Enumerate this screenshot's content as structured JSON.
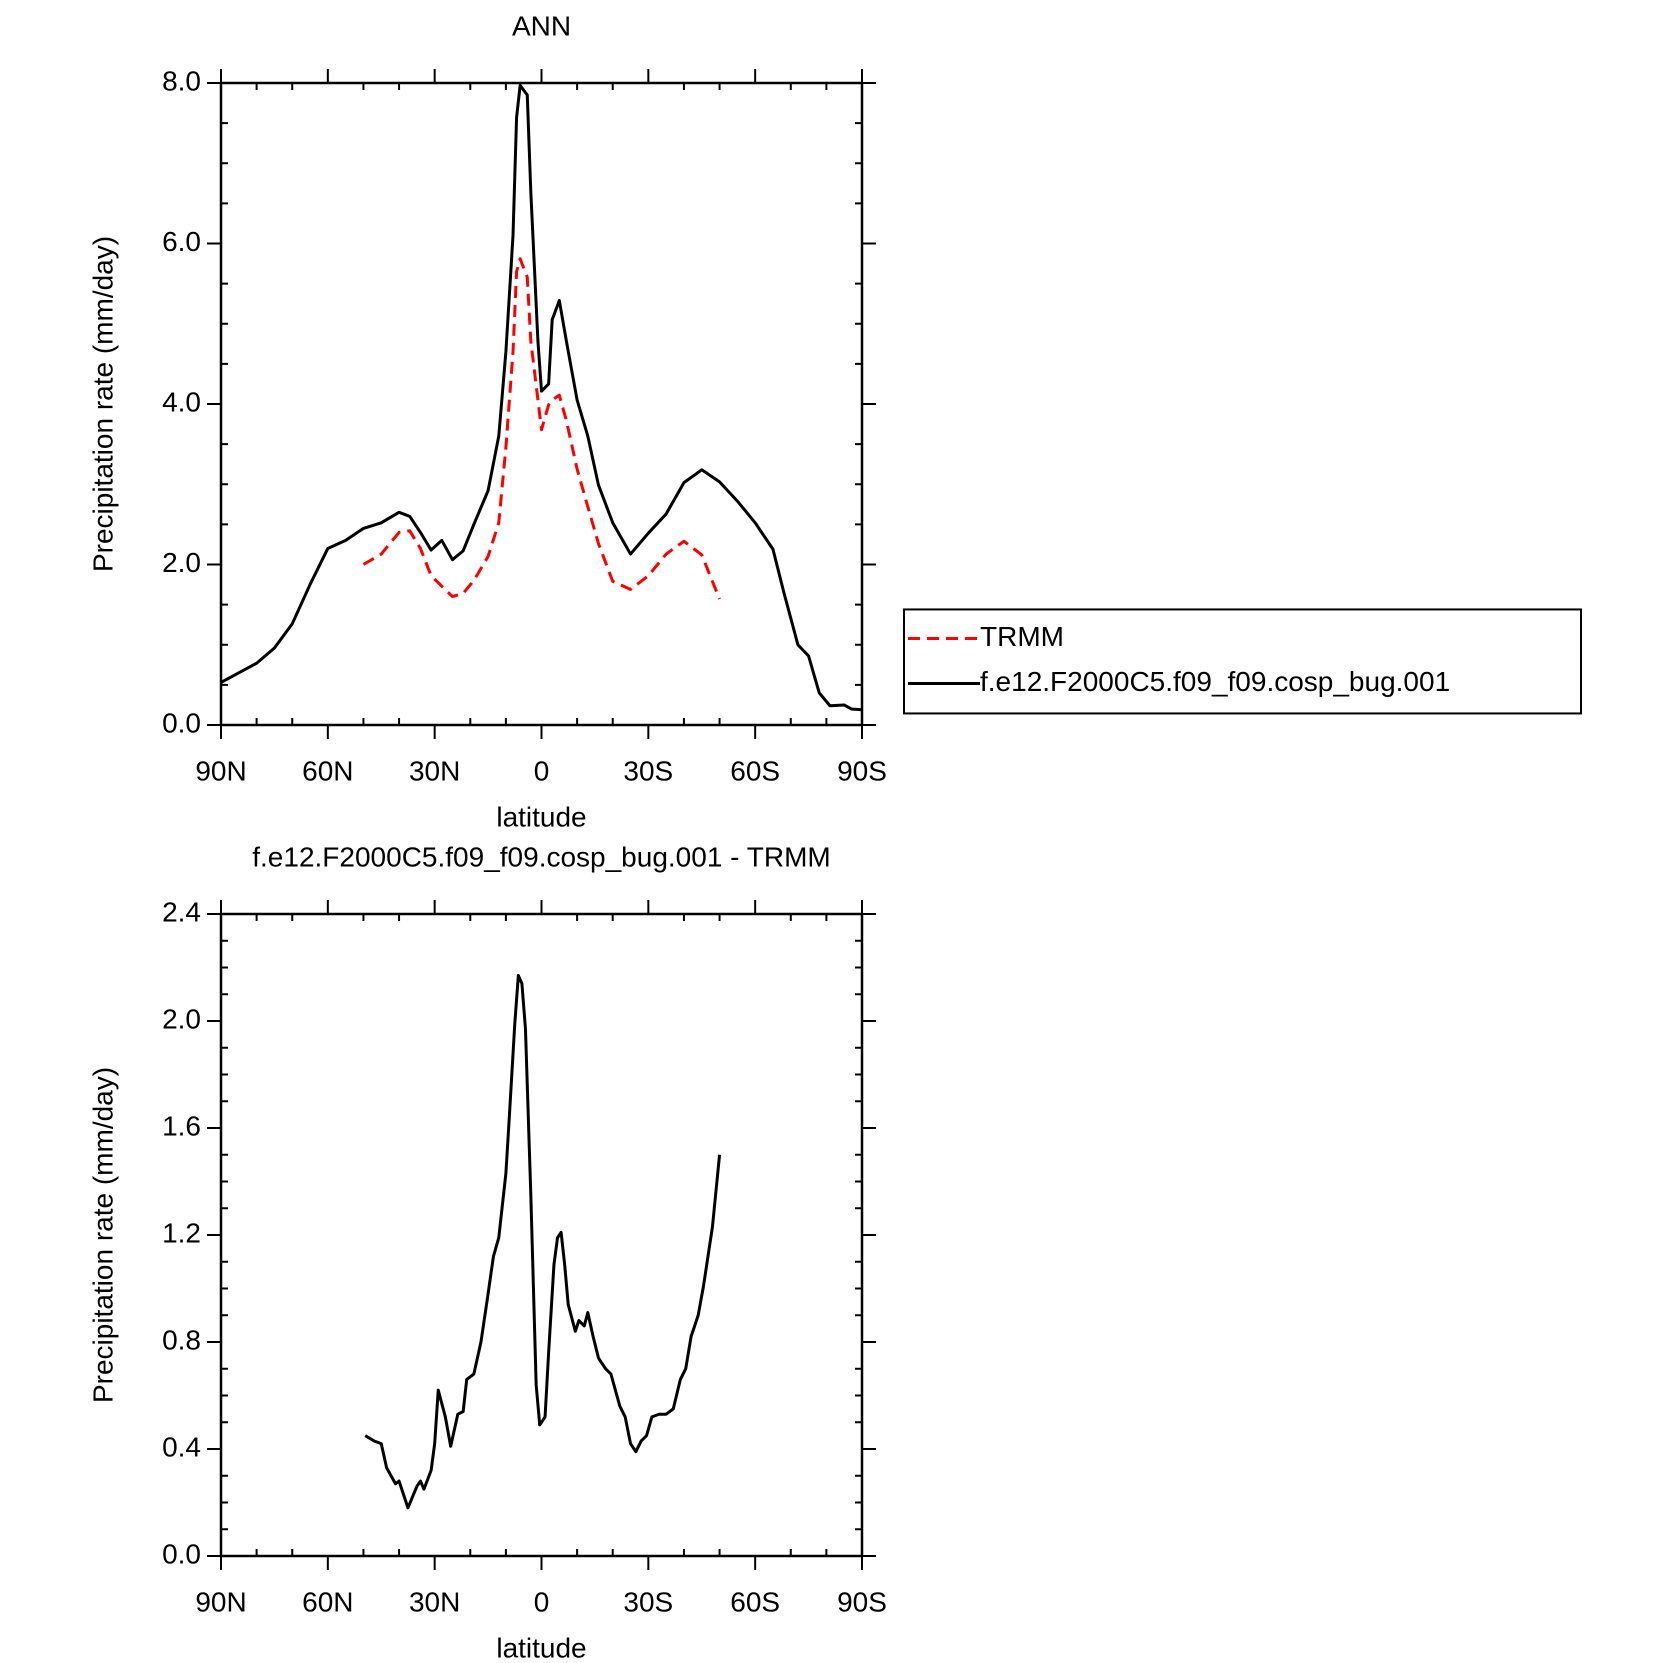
{
  "chart_data": [
    {
      "type": "line",
      "title": "ANN",
      "xlabel": "latitude",
      "ylabel": "Precipitation rate (mm/day)",
      "x": [
        90,
        85,
        80,
        75,
        70,
        65,
        60,
        55,
        50,
        45,
        40,
        37,
        34,
        31,
        28,
        25,
        22,
        19,
        15,
        12,
        10,
        8,
        7,
        6,
        4,
        3,
        1,
        0,
        -2,
        -3,
        -5,
        -7,
        -10,
        -13,
        -16,
        -20,
        -25,
        -30,
        -35,
        -40,
        -45,
        -50,
        -55,
        -60,
        -65,
        -68,
        -72,
        -75,
        -78,
        -81,
        -85,
        -87,
        -90
      ],
      "series": [
        {
          "name": "TRMM",
          "color": "#ff0000",
          "dash": true,
          "values": [
            null,
            null,
            null,
            null,
            null,
            null,
            null,
            null,
            2.0,
            2.13,
            2.4,
            2.42,
            2.2,
            1.86,
            1.73,
            1.6,
            1.64,
            1.8,
            2.1,
            2.52,
            3.46,
            4.65,
            5.65,
            5.81,
            5.58,
            4.78,
            4.05,
            3.68,
            3.99,
            4.05,
            4.11,
            3.79,
            3.19,
            2.72,
            2.26,
            1.79,
            1.69,
            1.86,
            2.13,
            2.29,
            2.12,
            1.57,
            null,
            null,
            null,
            null,
            null,
            null,
            null,
            null,
            null,
            null,
            null
          ]
        },
        {
          "name": "f.e12.F2000C5.f09_f09.cosp_bug.001",
          "color": "#000000",
          "dash": false,
          "values": [
            0.53,
            0.65,
            0.77,
            0.96,
            1.26,
            1.75,
            2.2,
            2.3,
            2.45,
            2.52,
            2.65,
            2.6,
            2.4,
            2.18,
            2.3,
            2.06,
            2.17,
            2.5,
            2.92,
            3.6,
            4.65,
            6.1,
            7.57,
            7.97,
            7.85,
            6.64,
            4.78,
            4.16,
            4.25,
            5.05,
            5.29,
            4.78,
            4.05,
            3.6,
            2.99,
            2.52,
            2.13,
            2.39,
            2.63,
            3.02,
            3.18,
            3.03,
            2.79,
            2.52,
            2.19,
            1.66,
            1.0,
            0.86,
            0.4,
            0.24,
            0.25,
            0.2,
            0.19
          ]
        }
      ],
      "legend": "right",
      "xlim": [
        90,
        -90
      ],
      "xticks": [
        {
          "value": 90,
          "label": "90N"
        },
        {
          "value": 60,
          "label": "60N"
        },
        {
          "value": 30,
          "label": "30N"
        },
        0,
        {
          "value": -30,
          "label": "30S"
        },
        {
          "value": -60,
          "label": "60S"
        },
        {
          "value": -90,
          "label": "90S"
        }
      ],
      "xminorticks": [
        80,
        70,
        50,
        40,
        20,
        10,
        -10,
        -20,
        -40,
        -50,
        -70,
        -80
      ],
      "ylim": [
        0,
        8
      ],
      "yticks": [
        {
          "value": 0,
          "label": "0.0"
        },
        {
          "value": 2,
          "label": "2.0"
        },
        {
          "value": 4,
          "label": "4.0"
        },
        {
          "value": 6,
          "label": "6.0"
        },
        {
          "value": 8,
          "label": "8.0"
        }
      ],
      "yminorticks": [
        0.5,
        1,
        1.5,
        2.5,
        3,
        3.5,
        4.5,
        5,
        5.5,
        6.5,
        7,
        7.5
      ]
    },
    {
      "type": "line",
      "title": "f.e12.F2000C5.f09_f09.cosp_bug.001 - TRMM",
      "xlabel": "latitude",
      "ylabel": "Precipitation rate (mm/day)",
      "x": [
        49.5,
        47,
        45,
        43.5,
        41,
        40,
        37.5,
        35,
        34,
        33,
        31,
        30,
        29,
        27,
        25.5,
        23.5,
        22,
        21,
        19,
        17,
        15,
        13.5,
        12,
        10,
        9,
        7.5,
        6.5,
        5.5,
        4.5,
        3,
        1.5,
        0.5,
        -1,
        -2,
        -3.5,
        -4.5,
        -5.5,
        -6.5,
        -7.5,
        -9.5,
        -10.5,
        -12,
        -13,
        -14.5,
        -16,
        -18,
        -19.5,
        -22,
        -23.5,
        -25,
        -26.5,
        -28,
        -29.5,
        -31,
        -33,
        -35,
        -37,
        -39,
        -40.5,
        -42,
        -44,
        -45.5,
        -48,
        -50
      ],
      "series": [
        {
          "color": "#000000",
          "dash": false,
          "values": [
            0.45,
            0.43,
            0.42,
            0.33,
            0.27,
            0.28,
            0.18,
            0.26,
            0.28,
            0.25,
            0.32,
            0.42,
            0.62,
            0.52,
            0.41,
            0.53,
            0.54,
            0.66,
            0.68,
            0.8,
            0.98,
            1.12,
            1.19,
            1.43,
            1.65,
            1.99,
            2.17,
            2.14,
            1.97,
            1.35,
            0.64,
            0.49,
            0.52,
            0.76,
            1.09,
            1.19,
            1.21,
            1.09,
            0.94,
            0.84,
            0.88,
            0.86,
            0.91,
            0.82,
            0.74,
            0.7,
            0.68,
            0.56,
            0.52,
            0.42,
            0.39,
            0.43,
            0.45,
            0.52,
            0.53,
            0.53,
            0.55,
            0.66,
            0.7,
            0.82,
            0.9,
            1.01,
            1.23,
            1.5
          ]
        }
      ],
      "xlim": [
        90,
        -90
      ],
      "xticks": [
        {
          "value": 90,
          "label": "90N"
        },
        {
          "value": 60,
          "label": "60N"
        },
        {
          "value": 30,
          "label": "30N"
        },
        0,
        {
          "value": -30,
          "label": "30S"
        },
        {
          "value": -60,
          "label": "60S"
        },
        {
          "value": -90,
          "label": "90S"
        }
      ],
      "xminorticks": [
        80,
        70,
        50,
        40,
        20,
        10,
        -10,
        -20,
        -40,
        -50,
        -70,
        -80
      ],
      "ylim": [
        0,
        2.4
      ],
      "yticks": [
        {
          "value": 0,
          "label": "0.0"
        },
        {
          "value": 0.4,
          "label": "0.4"
        },
        {
          "value": 0.8,
          "label": "0.8"
        },
        {
          "value": 1.2,
          "label": "1.2"
        },
        {
          "value": 1.6,
          "label": "1.6"
        },
        {
          "value": 2.0,
          "label": "2.0"
        },
        {
          "value": 2.4,
          "label": "2.4"
        }
      ],
      "yminorticks": [
        0.1,
        0.2,
        0.3,
        0.5,
        0.6,
        0.7,
        0.9,
        1,
        1.1,
        1.3,
        1.4,
        1.5,
        1.7,
        1.8,
        1.9,
        2.1,
        2.2,
        2.3
      ]
    }
  ]
}
